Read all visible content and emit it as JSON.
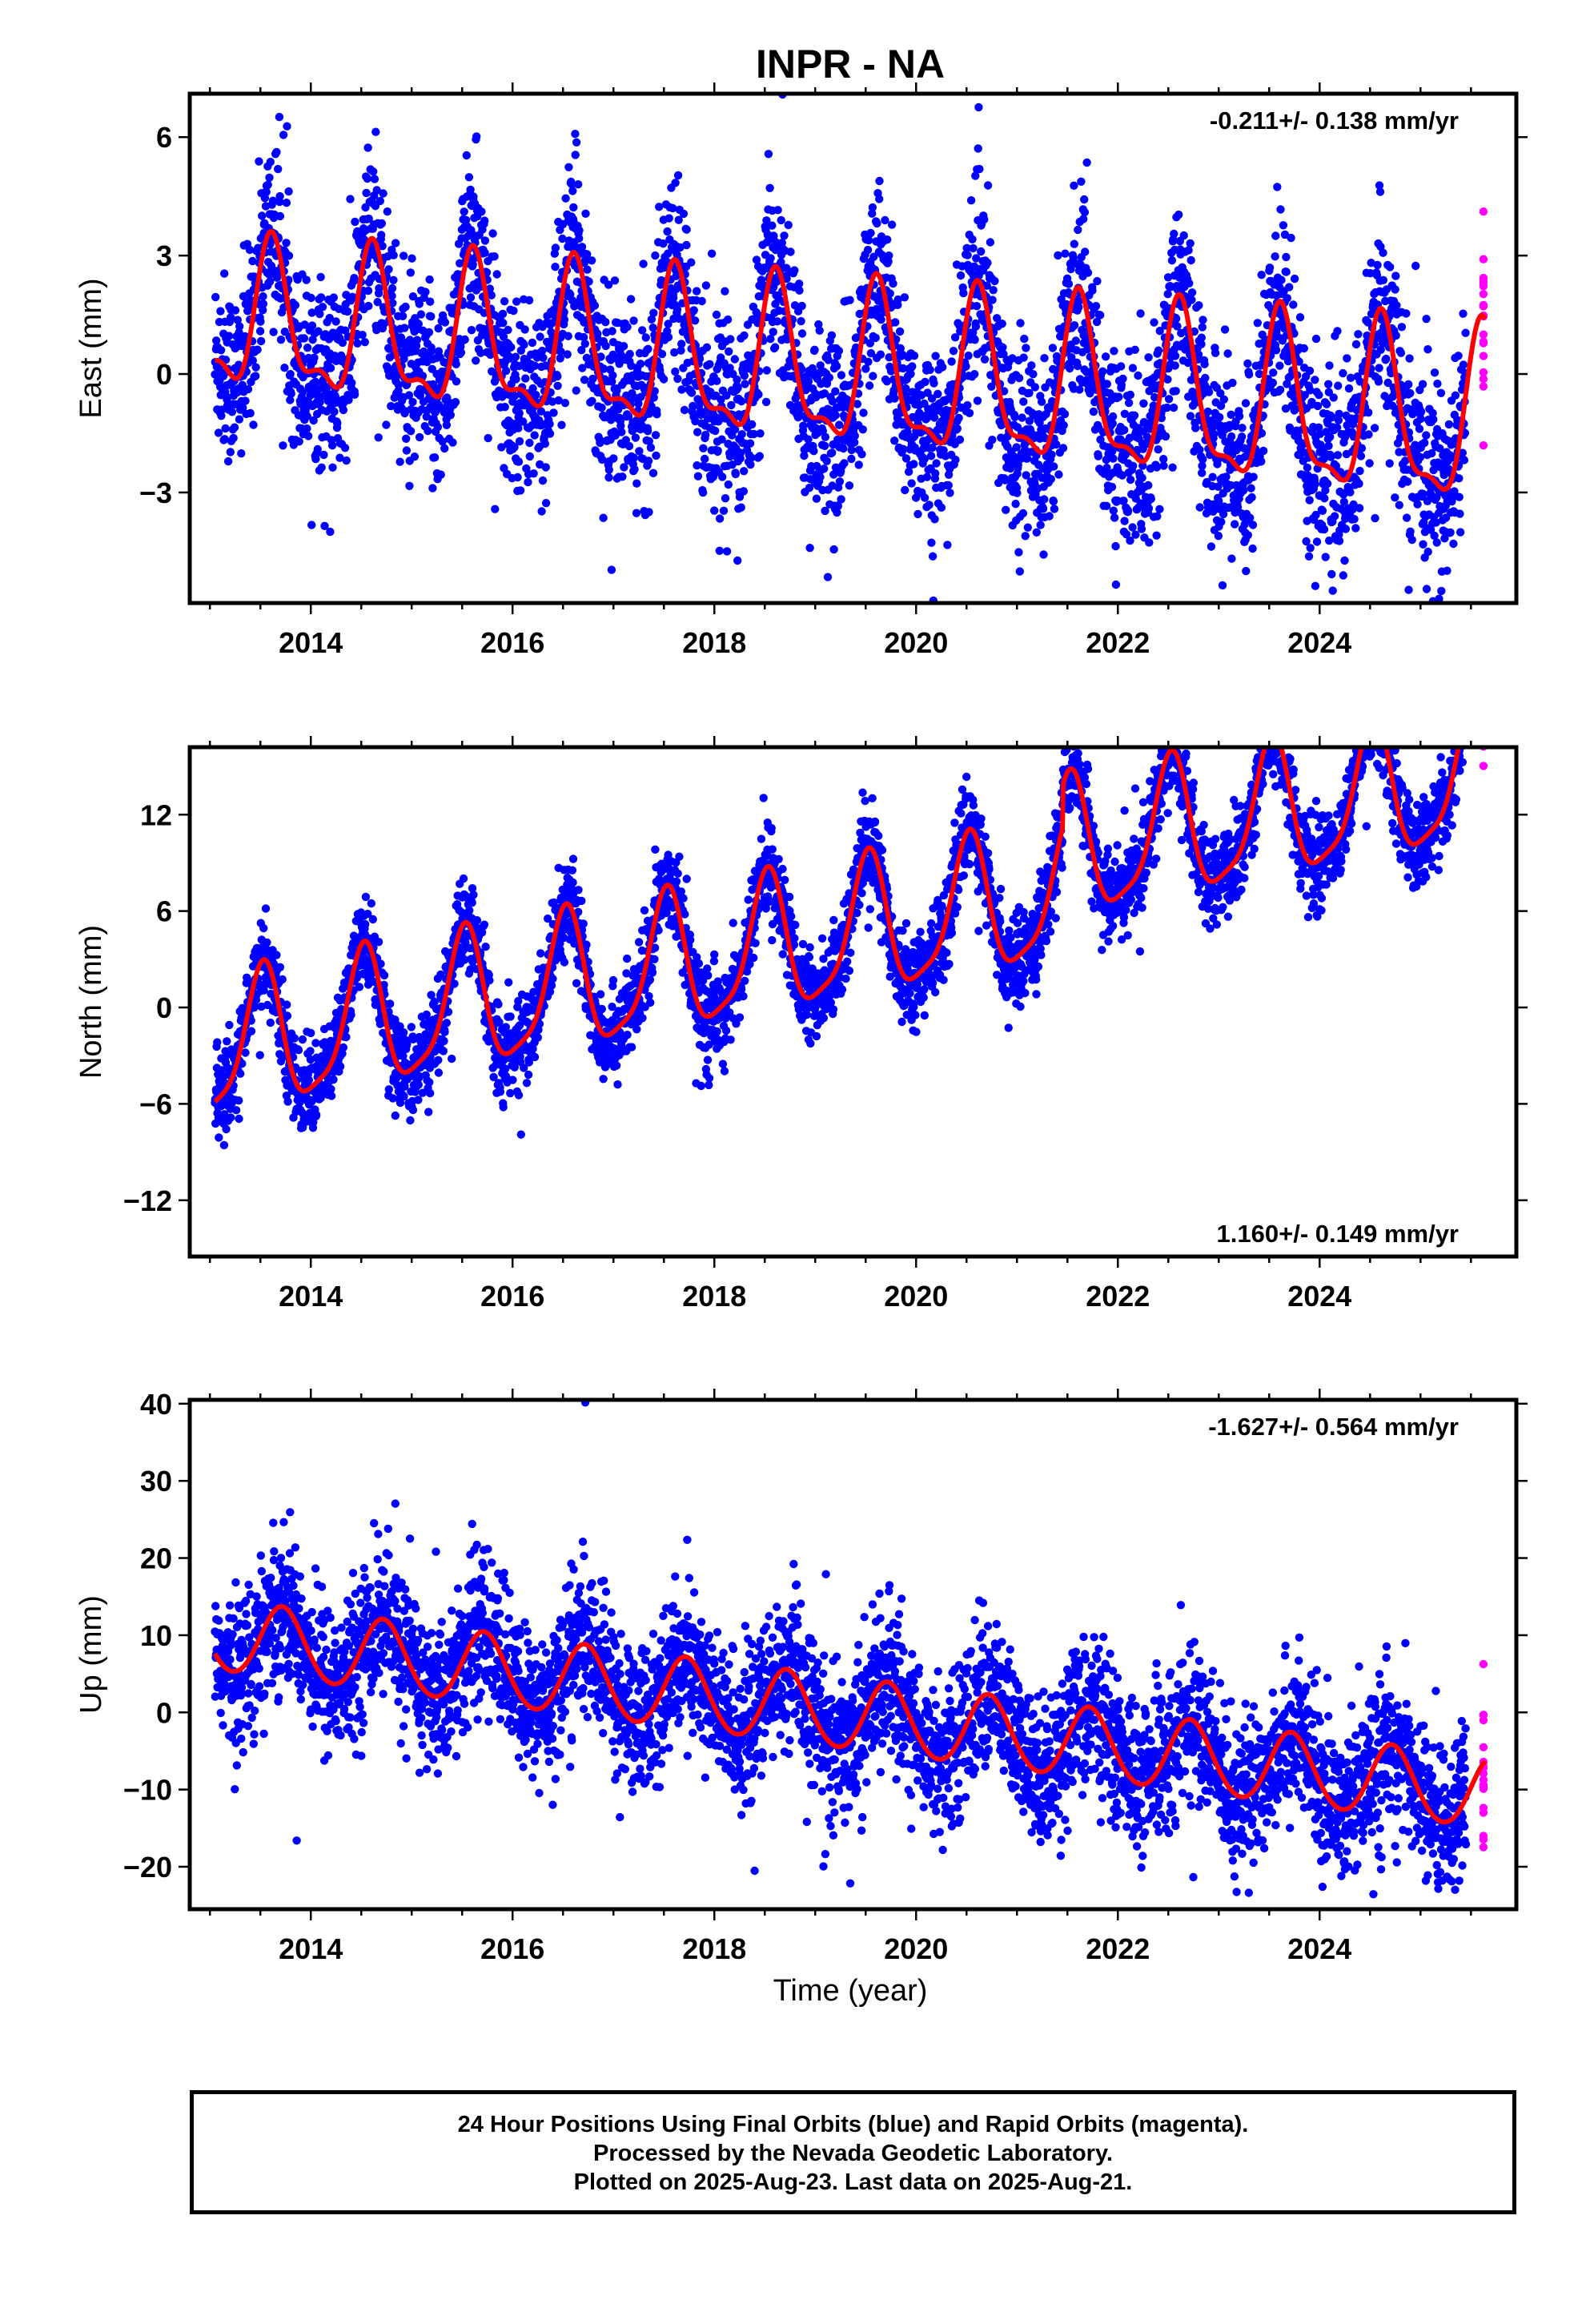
{
  "title": "INPR - NA",
  "x_axis_label": "Time (year)",
  "footer": {
    "line1": "24 Hour Positions Using Final Orbits (blue) and Rapid Orbits (magenta).",
    "line2": "Processed by the Nevada Geodetic Laboratory.",
    "line3": "Plotted on 2025-Aug-23. Last data on 2025-Aug-21."
  },
  "colors": {
    "final_orbits": "#0000ff",
    "rapid_orbits": "#ff00ff",
    "model_fit": "#ff0000"
  },
  "chart_data": [
    {
      "type": "scatter",
      "name": "east",
      "ylabel": "East (mm)",
      "rate_label": "-0.211+/- 0.138 mm/yr",
      "rate_position": "top-right",
      "xlim": [
        2012.8,
        2025.95
      ],
      "ylim": [
        -5.8,
        7.1
      ],
      "x_ticks": [
        2014,
        2016,
        2018,
        2020,
        2022,
        2024
      ],
      "y_ticks": [
        -3,
        0,
        3,
        6
      ],
      "model": {
        "offset": 0.0,
        "trend": -0.211,
        "trend_ref": 2019.3,
        "amp1": 1.7,
        "peak1": 0.62,
        "amp2": 0.7,
        "peak2": 0.1,
        "amp_growth": 0.02
      },
      "noise_sd": 1.15,
      "final_range": [
        2013.05,
        2025.45
      ],
      "rapid_range": [
        2025.48,
        2025.64
      ],
      "fit_range": [
        2013.05,
        2025.64
      ]
    },
    {
      "type": "scatter",
      "name": "north",
      "ylabel": "North (mm)",
      "rate_label": "1.160+/- 0.149 mm/yr",
      "rate_position": "bottom-right",
      "xlim": [
        2012.8,
        2025.95
      ],
      "ylim": [
        -15.5,
        16.2
      ],
      "x_ticks": [
        2014,
        2016,
        2018,
        2020,
        2022,
        2024
      ],
      "y_ticks": [
        -12,
        -6,
        0,
        6,
        12
      ],
      "model": {
        "offset": -2.8,
        "trend": 1.16,
        "trend_ref": 2013.0,
        "amp1": 4.2,
        "peak1": 0.52,
        "amp2": 1.0,
        "peak2": 0.05,
        "amp_growth": 0.0,
        "step_time": 2021.45,
        "step_size": 2.6
      },
      "noise_sd": 1.3,
      "final_range": [
        2013.05,
        2025.45
      ],
      "rapid_range": [
        2025.48,
        2025.64
      ],
      "fit_range": [
        2013.05,
        2025.64
      ]
    },
    {
      "type": "scatter",
      "name": "up",
      "ylabel": "Up (mm)",
      "rate_label": "-1.627+/- 0.564 mm/yr",
      "rate_position": "top-right",
      "xlim": [
        2012.8,
        2025.95
      ],
      "ylim": [
        -25.5,
        40.5
      ],
      "x_ticks": [
        2014,
        2016,
        2018,
        2020,
        2022,
        2024
      ],
      "y_ticks": [
        -20,
        -10,
        0,
        10,
        20,
        30,
        40
      ],
      "model": {
        "offset": 10.0,
        "trend": -1.627,
        "trend_ref": 2013.0,
        "amp1": 4.6,
        "peak1": 0.72,
        "amp2": 0.3,
        "peak2": 0.2,
        "amp_growth": 0.0
      },
      "noise_sd": 4.6,
      "final_range": [
        2013.05,
        2025.45
      ],
      "rapid_range": [
        2025.48,
        2025.64
      ],
      "fit_range": [
        2013.05,
        2025.64
      ]
    }
  ]
}
